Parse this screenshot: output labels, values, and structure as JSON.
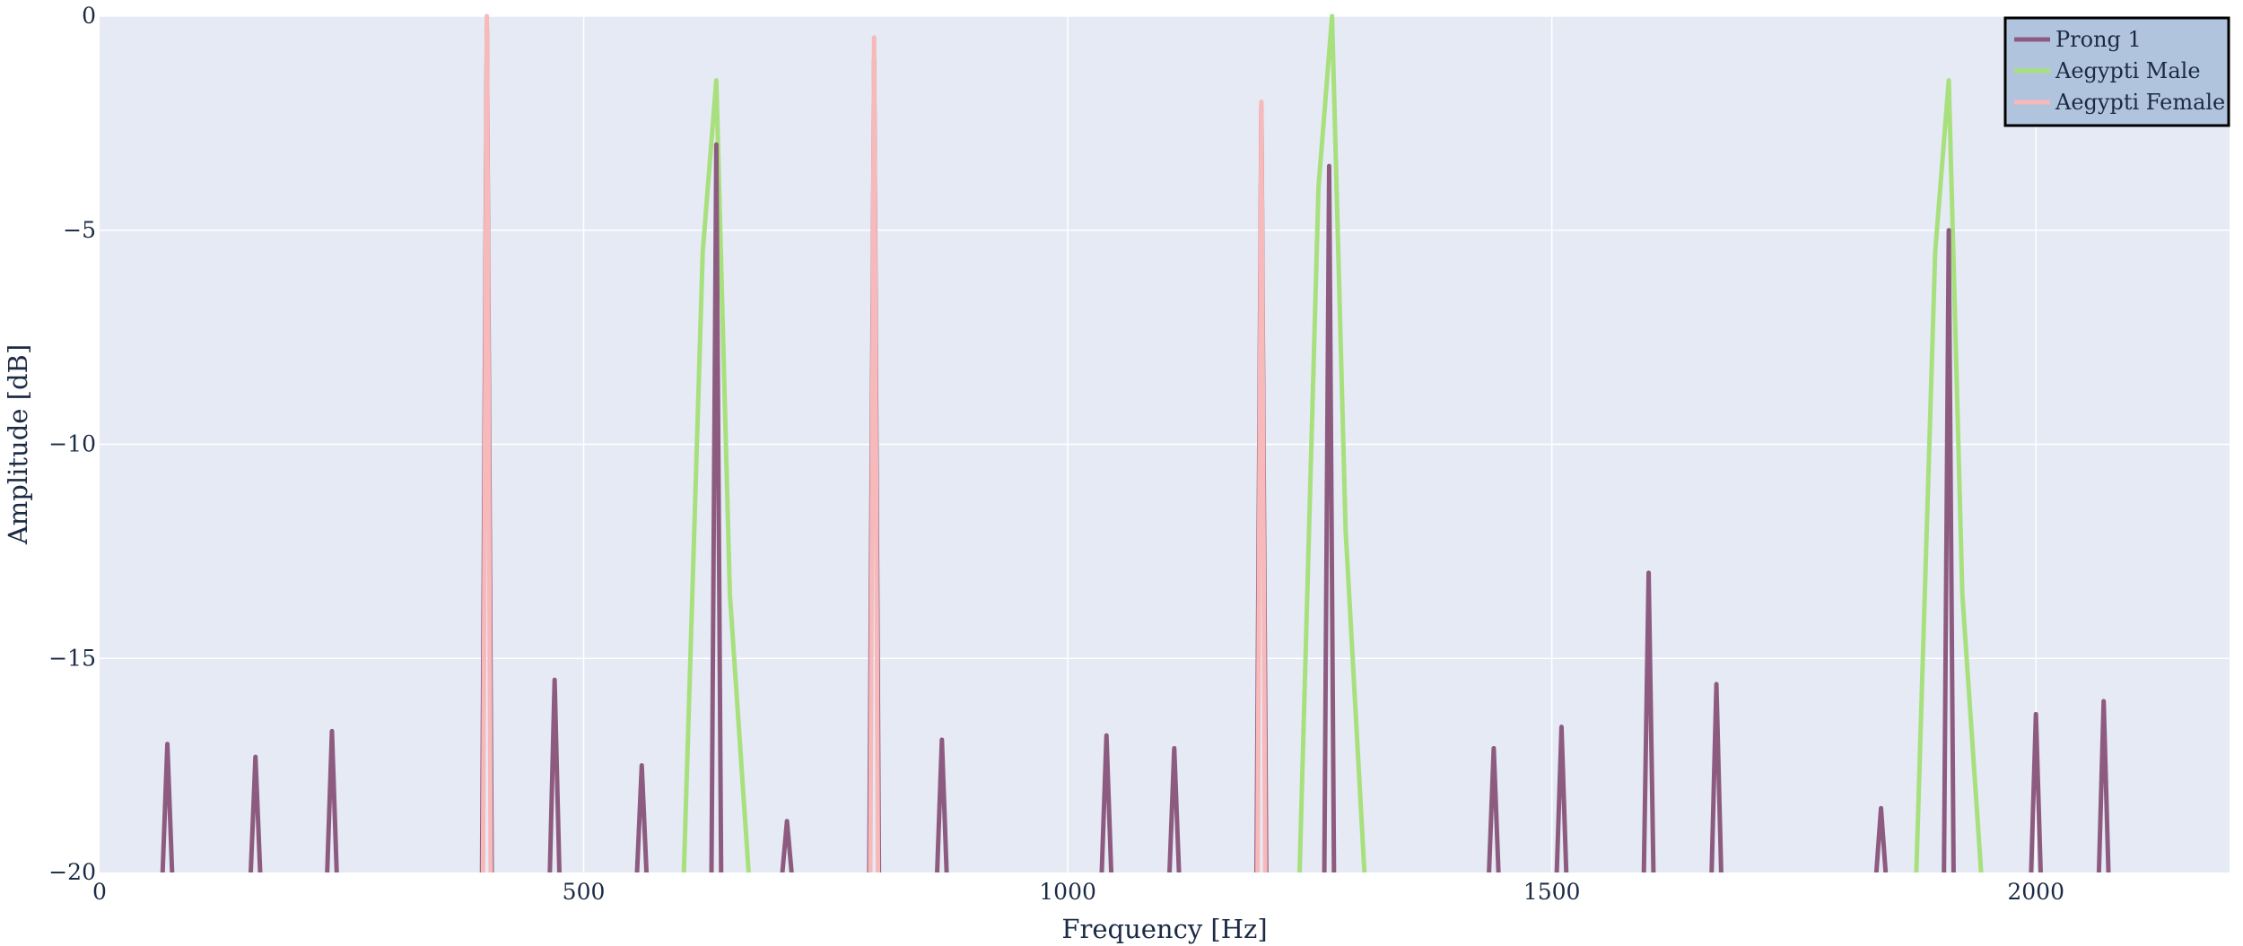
{
  "chart_data": {
    "type": "line",
    "xlabel": "Frequency [Hz]",
    "ylabel": "Amplitude [dB]",
    "xlim": [
      0,
      2200
    ],
    "ylim": [
      -20,
      0
    ],
    "x_ticks": [
      0,
      500,
      1000,
      1500,
      2000
    ],
    "y_ticks": [
      0,
      -5,
      -10,
      -15,
      -20
    ],
    "x_tick_labels": [
      "0",
      "500",
      "1000",
      "1500",
      "2000"
    ],
    "y_tick_labels": [
      "0",
      "−5",
      "−10",
      "−15",
      "−20"
    ],
    "grid": true,
    "legend_position": "top-right",
    "series": [
      {
        "name": "Prong 1",
        "color": "#8e5b80",
        "peaks": [
          {
            "x": 70,
            "y": -17.0
          },
          {
            "x": 161,
            "y": -17.3
          },
          {
            "x": 240,
            "y": -16.7
          },
          {
            "x": 400,
            "y": -0.3
          },
          {
            "x": 470,
            "y": -15.5
          },
          {
            "x": 560,
            "y": -17.5
          },
          {
            "x": 637,
            "y": -3.0
          },
          {
            "x": 710,
            "y": -18.8
          },
          {
            "x": 800,
            "y": -1.0
          },
          {
            "x": 870,
            "y": -16.9
          },
          {
            "x": 1040,
            "y": -16.8
          },
          {
            "x": 1110,
            "y": -17.1
          },
          {
            "x": 1200,
            "y": -2.1
          },
          {
            "x": 1270,
            "y": -3.5
          },
          {
            "x": 1440,
            "y": -17.1
          },
          {
            "x": 1510,
            "y": -16.6
          },
          {
            "x": 1600,
            "y": -13.0
          },
          {
            "x": 1670,
            "y": -15.6
          },
          {
            "x": 1840,
            "y": -18.5
          },
          {
            "x": 1910,
            "y": -5.0
          },
          {
            "x": 2000,
            "y": -16.3
          },
          {
            "x": 2070,
            "y": -16.0
          }
        ]
      },
      {
        "name": "Aegypti Male",
        "color": "#a8e07e",
        "peaks": [
          {
            "x": 637,
            "y": -1.5
          },
          {
            "x": 1273,
            "y": 0.0
          },
          {
            "x": 1910,
            "y": -1.5
          }
        ]
      },
      {
        "name": "Aegypti Female",
        "color": "#f7b9b9",
        "peaks": [
          {
            "x": 400,
            "y": 0.0
          },
          {
            "x": 800,
            "y": -0.5
          },
          {
            "x": 1200,
            "y": -2.0
          }
        ]
      }
    ]
  },
  "colors": {
    "plot_background": "#e5eaf5",
    "grid": "#ffffff",
    "legend_background": "#b0c4de",
    "legend_border": "#000000",
    "text": "#1c2b45"
  }
}
